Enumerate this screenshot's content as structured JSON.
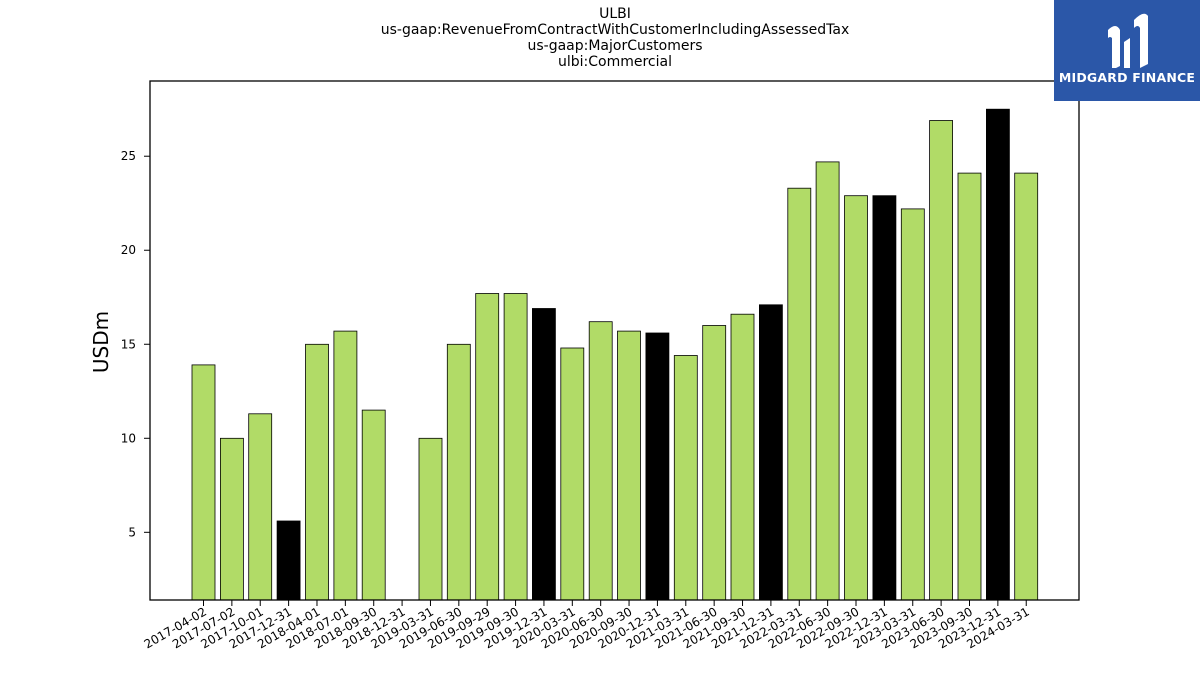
{
  "title_lines": [
    "ULBI",
    "us-gaap:RevenueFromContractWithCustomerIncludingAssessedTax",
    "us-gaap:MajorCustomers",
    "ulbi:Commercial"
  ],
  "logo": {
    "text": "MIDGARD FINANCE",
    "background": "#2b57a8"
  },
  "chart_data": {
    "type": "bar",
    "ylabel": "USDm",
    "xlabel": "",
    "ylim": [
      1.4,
      29.0
    ],
    "yticks": [
      5,
      10,
      15,
      20,
      25
    ],
    "grid": false,
    "colors": {
      "quarter": "#b1db67",
      "year_end": "#000000"
    },
    "categories": [
      "2017-04-02",
      "2017-07-02",
      "2017-10-01",
      "2017-12-31",
      "2018-04-01",
      "2018-07-01",
      "2018-09-30",
      "2018-12-31",
      "2019-03-31",
      "2019-06-30",
      "2019-09-29",
      "2019-09-30",
      "2019-12-31",
      "2020-03-31",
      "2020-06-30",
      "2020-09-30",
      "2020-12-31",
      "2021-03-31",
      "2021-06-30",
      "2021-09-30",
      "2021-12-31",
      "2022-03-31",
      "2022-06-30",
      "2022-09-30",
      "2022-12-31",
      "2023-03-31",
      "2023-06-30",
      "2023-09-30",
      "2023-12-31",
      "2024-03-31"
    ],
    "values": [
      13.9,
      10.0,
      11.3,
      5.6,
      15.0,
      15.7,
      11.5,
      null,
      10.0,
      15.0,
      17.7,
      17.7,
      16.9,
      14.8,
      16.2,
      15.7,
      15.6,
      14.4,
      16.0,
      16.6,
      17.1,
      23.3,
      24.7,
      22.9,
      22.9,
      22.2,
      26.9,
      24.1,
      27.5,
      24.1
    ],
    "year_end": [
      false,
      false,
      false,
      true,
      false,
      false,
      false,
      true,
      false,
      false,
      false,
      false,
      true,
      false,
      false,
      false,
      true,
      false,
      false,
      false,
      true,
      false,
      false,
      false,
      true,
      false,
      false,
      false,
      true,
      false
    ]
  }
}
